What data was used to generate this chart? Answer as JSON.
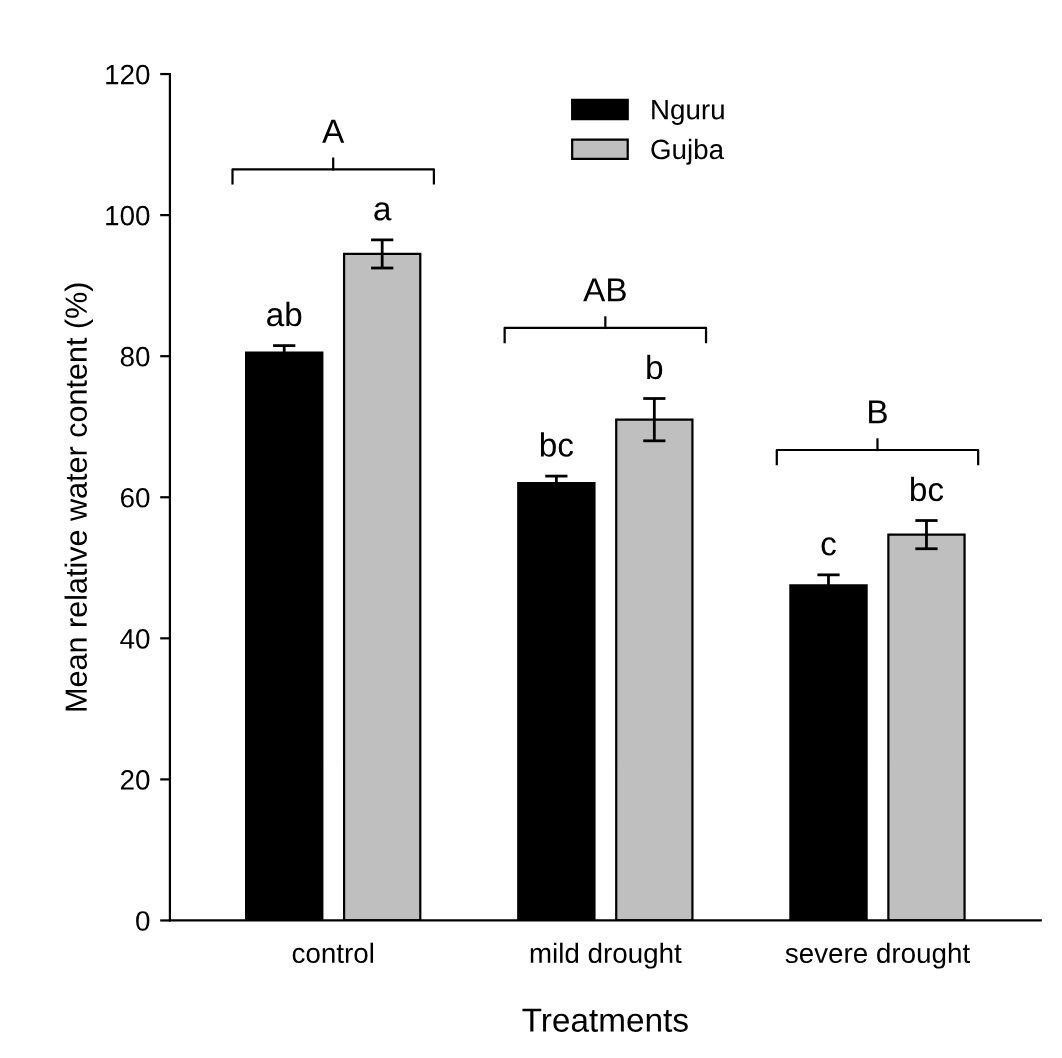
{
  "chart_data": {
    "type": "bar",
    "xlabel": "Treatments",
    "ylabel": "Mean relative water content (%)",
    "categories": [
      "control",
      "mild drought",
      "severe drought"
    ],
    "series": [
      {
        "name": "Nguru",
        "color": "#000000",
        "values": [
          80.5,
          62,
          47.5
        ],
        "errors": [
          1,
          1,
          1.5
        ]
      },
      {
        "name": "Gujba",
        "color": "#bfbfbf",
        "values": [
          94.5,
          71,
          54.7
        ],
        "errors": [
          2,
          3,
          2
        ]
      }
    ],
    "ylim": [
      0,
      120
    ],
    "yticks": [
      0,
      20,
      40,
      60,
      80,
      100,
      120
    ],
    "legend": "top center",
    "grid": false,
    "annotations": [
      "ab",
      "a",
      "bc",
      "b",
      "c",
      "bc",
      "A",
      "AB",
      "B"
    ]
  }
}
